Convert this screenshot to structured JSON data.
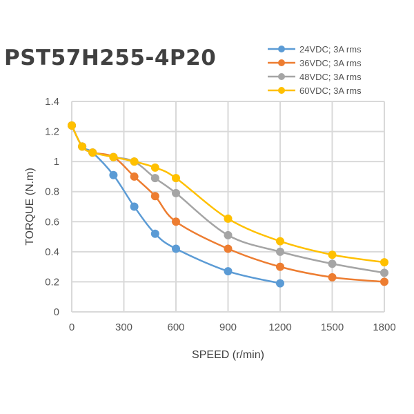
{
  "chart_data": {
    "type": "line",
    "title": "PST57H255-4P20",
    "xlabel": "SPEED (r/min)",
    "ylabel": "TORQUE (N.m)",
    "xlim": [
      0,
      1800
    ],
    "ylim": [
      0,
      1.4
    ],
    "xticks": [
      0,
      300,
      600,
      900,
      1200,
      1500,
      1800
    ],
    "yticks": [
      "0",
      "0.2",
      "0.4",
      "0.6",
      "0.8",
      "1",
      "1.2",
      "1.4"
    ],
    "grid": true,
    "legend_position": "top-right",
    "series": [
      {
        "name": "24VDC; 3A rms",
        "color": "#5B9BD5",
        "x": [
          0,
          60,
          120,
          240,
          360,
          480,
          600,
          900,
          1200
        ],
        "y": [
          1.24,
          1.1,
          1.06,
          0.91,
          0.7,
          0.52,
          0.42,
          0.27,
          0.19
        ]
      },
      {
        "name": "36VDC; 3A rms",
        "color": "#ED7D31",
        "x": [
          0,
          60,
          120,
          240,
          360,
          480,
          600,
          900,
          1200,
          1500,
          1800
        ],
        "y": [
          1.24,
          1.1,
          1.06,
          1.03,
          0.9,
          0.77,
          0.6,
          0.42,
          0.3,
          0.23,
          0.2
        ]
      },
      {
        "name": "48VDC; 3A rms",
        "color": "#A5A5A5",
        "x": [
          0,
          60,
          120,
          240,
          360,
          480,
          600,
          900,
          1200,
          1500,
          1800
        ],
        "y": [
          1.24,
          1.1,
          1.06,
          1.03,
          1.0,
          0.89,
          0.79,
          0.51,
          0.4,
          0.32,
          0.26
        ]
      },
      {
        "name": "60VDC; 3A rms",
        "color": "#FFC000",
        "x": [
          0,
          60,
          120,
          240,
          360,
          480,
          600,
          900,
          1200,
          1500,
          1800
        ],
        "y": [
          1.24,
          1.1,
          1.06,
          1.03,
          1.0,
          0.96,
          0.89,
          0.62,
          0.47,
          0.38,
          0.33
        ]
      }
    ]
  }
}
